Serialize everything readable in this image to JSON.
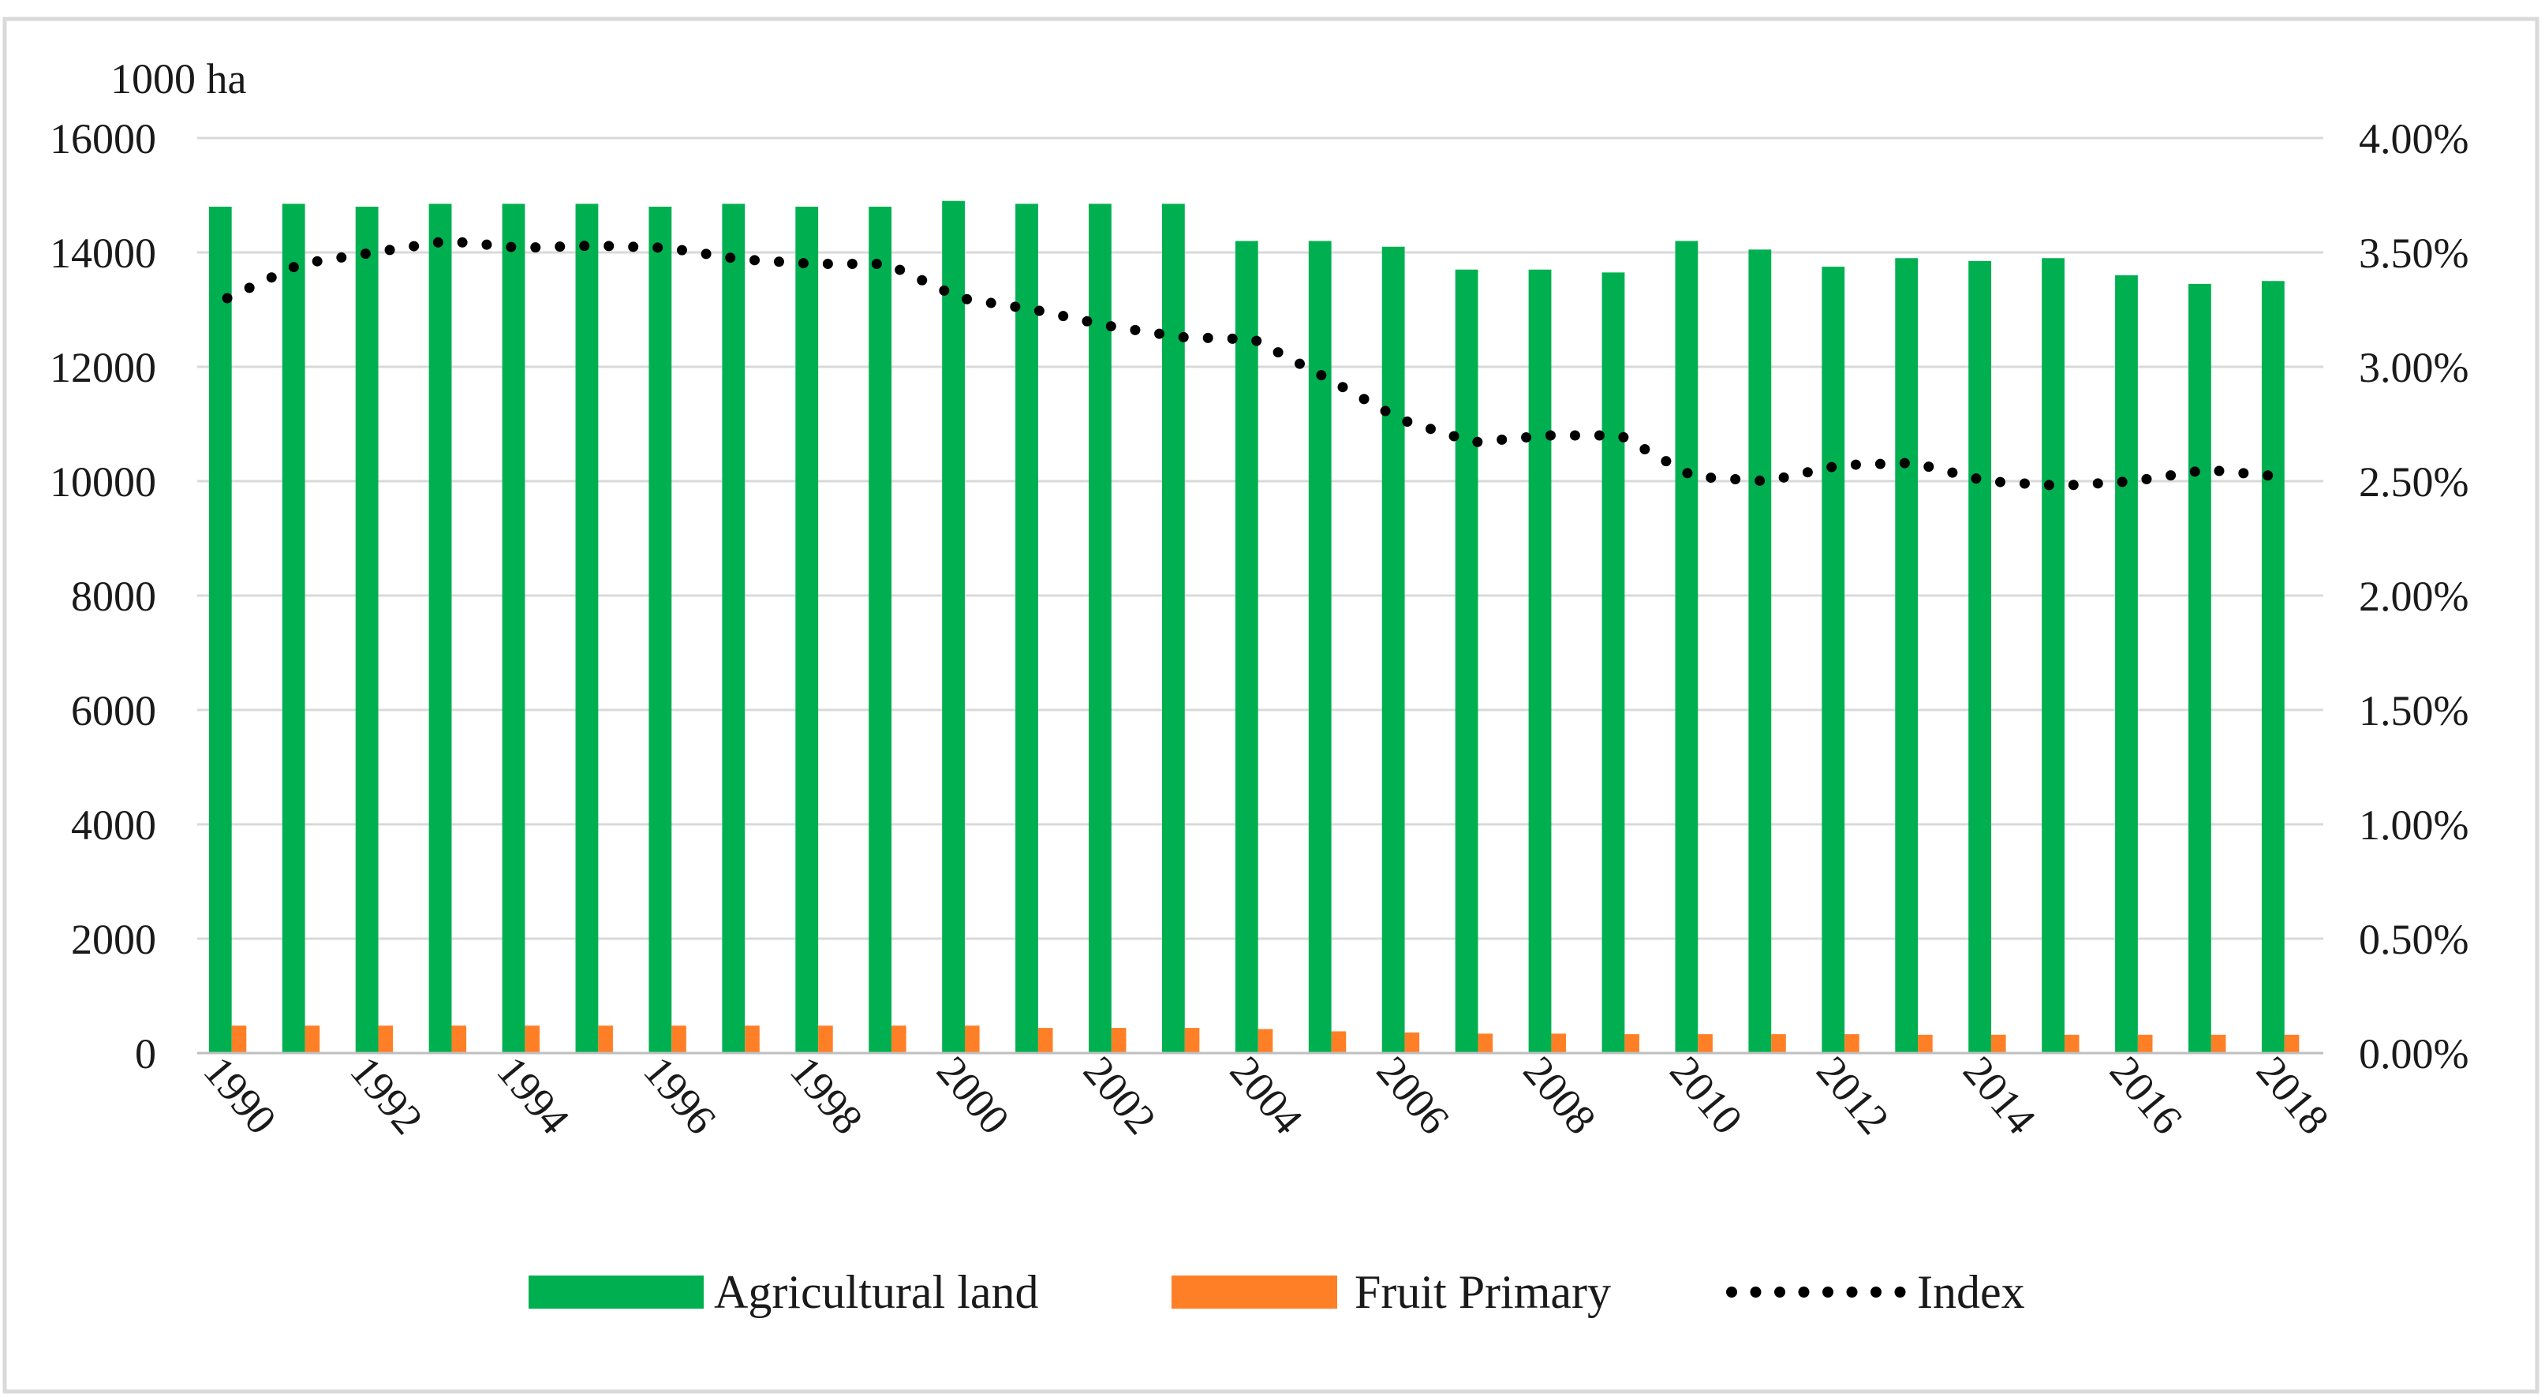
{
  "chart_data": {
    "type": "bar",
    "title": "",
    "ylabel": "1000 ha",
    "y2label": "",
    "categories": [
      "1990",
      "1991",
      "1992",
      "1993",
      "1994",
      "1995",
      "1996",
      "1997",
      "1998",
      "1999",
      "2000",
      "2001",
      "2002",
      "2003",
      "2004",
      "2005",
      "2006",
      "2007",
      "2008",
      "2009",
      "2010",
      "2011",
      "2012",
      "2013",
      "2014",
      "2015",
      "2016",
      "2017",
      "2018"
    ],
    "x_tick_labels": [
      "1990",
      "1992",
      "1994",
      "1996",
      "1998",
      "2000",
      "2002",
      "2004",
      "2006",
      "2008",
      "2010",
      "2012",
      "2014",
      "2016",
      "2018"
    ],
    "ylim": [
      0,
      16000
    ],
    "y_ticks": [
      "0",
      "2000",
      "4000",
      "6000",
      "8000",
      "10000",
      "12000",
      "14000",
      "16000"
    ],
    "y2lim": [
      0,
      0.04
    ],
    "y2_ticks": [
      "0.00%",
      "0.50%",
      "1.00%",
      "1.50%",
      "2.00%",
      "2.50%",
      "3.00%",
      "3.50%",
      "4.00%"
    ],
    "grid": true,
    "legend_position": "bottom",
    "series": [
      {
        "name": "Agricultural land",
        "type": "bar",
        "axis": "left",
        "color": "#00b050",
        "values": [
          14800,
          14850,
          14800,
          14850,
          14850,
          14850,
          14800,
          14850,
          14800,
          14800,
          14900,
          14850,
          14850,
          14850,
          14200,
          14200,
          14100,
          13700,
          13700,
          13650,
          14200,
          14050,
          13750,
          13900,
          13850,
          13900,
          13600,
          13450,
          13500
        ]
      },
      {
        "name": "Fruit Primary",
        "type": "bar",
        "axis": "left",
        "color": "#ff7f27",
        "values": [
          480,
          480,
          480,
          480,
          480,
          480,
          480,
          480,
          480,
          480,
          480,
          440,
          440,
          440,
          420,
          380,
          360,
          340,
          340,
          330,
          330,
          330,
          330,
          320,
          320,
          320,
          320,
          320,
          320
        ]
      },
      {
        "name": "Index",
        "type": "line",
        "style": "dotted",
        "axis": "right",
        "color": "#000000",
        "values": [
          0.033,
          0.0345,
          0.035,
          0.0355,
          0.0352,
          0.0353,
          0.0352,
          0.0347,
          0.0345,
          0.0345,
          0.033,
          0.0325,
          0.0318,
          0.0313,
          0.0312,
          0.0295,
          0.0277,
          0.0267,
          0.027,
          0.027,
          0.0252,
          0.025,
          0.0257,
          0.0258,
          0.025,
          0.0248,
          0.025,
          0.0255,
          0.0252
        ]
      }
    ]
  }
}
